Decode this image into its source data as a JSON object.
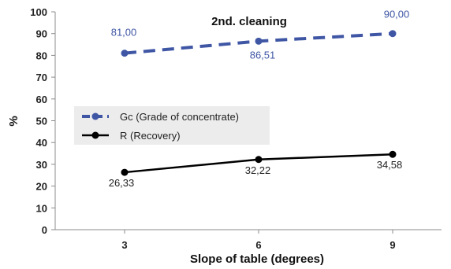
{
  "chart_data": {
    "type": "line",
    "title": "2nd. cleaning",
    "xlabel": "Slope of table (degrees)",
    "ylabel": "%",
    "x": [
      3,
      6,
      9
    ],
    "x_tick_labels": [
      "3",
      "6",
      "9"
    ],
    "ylim": [
      0,
      100
    ],
    "y_ticks": [
      0,
      10,
      20,
      30,
      40,
      50,
      60,
      70,
      80,
      90,
      100
    ],
    "grid": false,
    "legend_position": "center-left",
    "series": [
      {
        "name": "Gc (Grade of concentrate)",
        "values": [
          81.0,
          86.51,
          90.0
        ],
        "data_labels": [
          "81,00",
          "86,51",
          "90,00"
        ],
        "color": "#3F56A5",
        "line_style": "dashed"
      },
      {
        "name": "R (Recovery)",
        "values": [
          26.33,
          32.22,
          34.58
        ],
        "data_labels": [
          "26,33",
          "32,22",
          "34,58"
        ],
        "color": "#000000",
        "line_style": "solid"
      }
    ]
  }
}
